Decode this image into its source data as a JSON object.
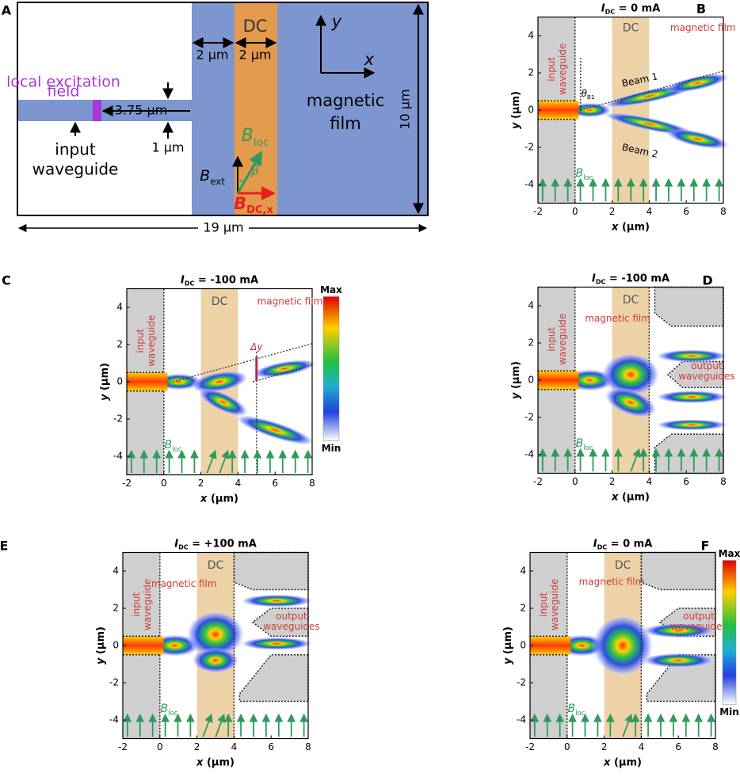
{
  "panels": [
    {
      "label": "A",
      "dc": "DC",
      "gap1": "2 μm",
      "gap2": "2 μm",
      "axis_y": "y",
      "axis_x": "x",
      "excitation": [
        "local excitation",
        "field"
      ],
      "excitation_length": "3.75 μm",
      "film": [
        "magnetic",
        "film"
      ],
      "width": "10 μm",
      "input": [
        "input",
        "waveguide"
      ],
      "input_width": "1 μm",
      "b_loc": {
        "base": "B",
        "sub": "loc"
      },
      "b_ext": {
        "base": "B",
        "sub": "ext"
      },
      "angle": "β",
      "b_dc": {
        "base": "B",
        "sub": "DC,x"
      },
      "length": "19 μm"
    },
    {
      "label": "B",
      "title": {
        "var": "I",
        "sub": "DC",
        "rest": " = 0 mA"
      },
      "xticks": [
        -2,
        0,
        2,
        4,
        6,
        8
      ],
      "yticks": [
        -4,
        -2,
        0,
        2,
        4
      ],
      "xlabel": {
        "var": "x",
        "unit": " (μm)"
      },
      "ylabel": {
        "var": "y",
        "unit": " (μm)"
      },
      "annotations": {
        "input": [
          "input",
          "waveguide"
        ],
        "dc": "DC",
        "film": "magnetic film",
        "beam1": "Beam 1",
        "beam2": "Beam 2",
        "angle": {
          "base": "θ",
          "sub": "B1"
        },
        "b_loc": {
          "base": "B",
          "sub": "loc"
        }
      }
    },
    {
      "label": "C",
      "title": {
        "var": "I",
        "sub": "DC",
        "rest": " = -100 mA"
      },
      "xticks": [
        -2,
        0,
        2,
        4,
        6,
        8
      ],
      "yticks": [
        -4,
        -2,
        0,
        2,
        4
      ],
      "xlabel": {
        "var": "x",
        "unit": " (μm)"
      },
      "ylabel": {
        "var": "y",
        "unit": " (μm)"
      },
      "annotations": {
        "input": [
          "input",
          "waveguide"
        ],
        "dc": "DC",
        "film": "magnetic film",
        "dy": "Δy",
        "b_loc": {
          "base": "B",
          "sub": "loc"
        }
      },
      "colorbar": {
        "max": "Max",
        "min": "Min"
      }
    },
    {
      "label": "D",
      "title": {
        "var": "I",
        "sub": "DC",
        "rest": " = -100 mA"
      },
      "xticks": [
        -2,
        0,
        2,
        4,
        6,
        8
      ],
      "yticks": [
        -4,
        -2,
        0,
        2,
        4
      ],
      "xlabel": {
        "var": "x",
        "unit": " (μm)"
      },
      "ylabel": {
        "var": "y",
        "unit": " (μm)"
      },
      "annotations": {
        "input": [
          "input",
          "waveguide"
        ],
        "dc": "DC",
        "film": "magnetic film",
        "output": [
          "output",
          "waveguides"
        ],
        "b_loc": {
          "base": "B",
          "sub": "loc"
        }
      }
    },
    {
      "label": "E",
      "title": {
        "var": "I",
        "sub": "DC",
        "rest": " = +100 mA"
      },
      "xticks": [
        -2,
        0,
        2,
        4,
        6,
        8
      ],
      "yticks": [
        -4,
        -2,
        0,
        2,
        4
      ],
      "xlabel": {
        "var": "x",
        "unit": " (μm)"
      },
      "ylabel": {
        "var": "y",
        "unit": " (μm)"
      },
      "annotations": {
        "input": [
          "input",
          "waveguide"
        ],
        "dc": "DC",
        "film": "magnetic film",
        "output": [
          "output",
          "waveguides"
        ],
        "b_loc": {
          "base": "B",
          "sub": "loc"
        }
      }
    },
    {
      "label": "F",
      "title": {
        "var": "I",
        "sub": "DC",
        "rest": " = 0 mA"
      },
      "xticks": [
        -2,
        0,
        2,
        4,
        6,
        8
      ],
      "yticks": [
        -4,
        -2,
        0,
        2,
        4
      ],
      "xlabel": {
        "var": "x",
        "unit": " (μm)"
      },
      "ylabel": {
        "var": "y",
        "unit": " (μm)"
      },
      "annotations": {
        "input": [
          "input",
          "waveguide"
        ],
        "dc": "DC",
        "film": "magnetic film",
        "output": [
          "output",
          "waveguides"
        ],
        "b_loc": {
          "base": "B",
          "sub": "loc"
        }
      },
      "colorbar": {
        "max": "Max",
        "min": "Min"
      }
    }
  ]
}
